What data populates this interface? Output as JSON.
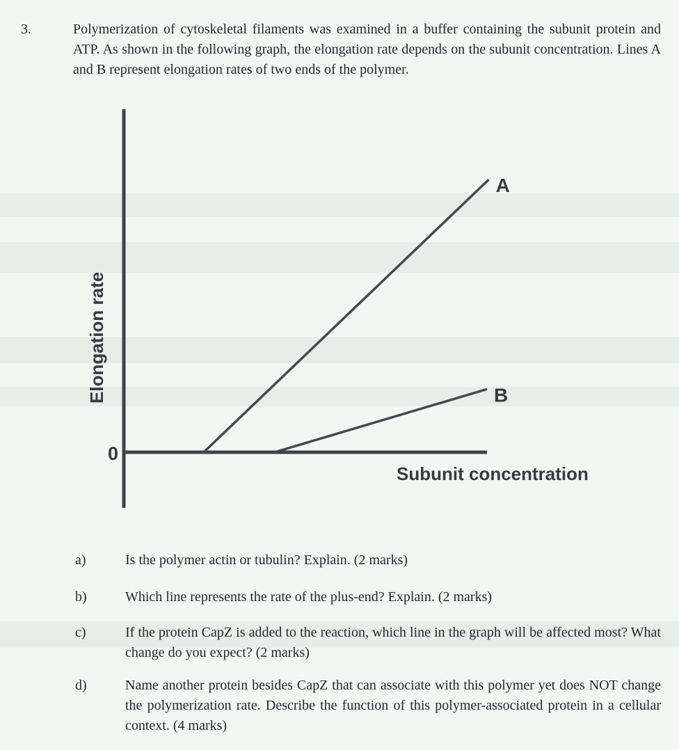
{
  "question": {
    "number": "3.",
    "text": "Polymerization of cytoskeletal filaments was examined in a buffer containing the subunit protein and ATP. As shown in the following graph, the elongation rate depends on the subunit concentration. Lines A and B represent elongation rates of two ends of the polymer."
  },
  "chart_data": {
    "type": "line",
    "title": "",
    "xlabel": "Subunit concentration",
    "ylabel": "Elongation rate",
    "origin_label": "0",
    "x_axis": {
      "ticks": [],
      "note": "unlabeled arbitrary units, 0 at origin"
    },
    "y_axis": {
      "ticks": [],
      "note": "unlabeled arbitrary units, 0 at x-axis level"
    },
    "grid": false,
    "legend": "inline end-of-line labels",
    "series": [
      {
        "name": "A",
        "description": "steep straight line; intercepts x-axis at lower critical concentration (~0.22 of axis span) rising to ~0.80 of plot height at right edge",
        "points_frac": [
          [
            0.22,
            0.0
          ],
          [
            1.005,
            0.8
          ]
        ]
      },
      {
        "name": "B",
        "description": "shallow straight line; intercepts x-axis at higher critical concentration (~0.42 of axis span) rising to ~0.185 of plot height",
        "points_frac": [
          [
            0.415,
            0.0
          ],
          [
            1.0,
            0.185
          ]
        ]
      }
    ]
  },
  "subquestions": [
    {
      "label": "a)",
      "text": "Is the polymer actin or tubulin? Explain. (2 marks)"
    },
    {
      "label": "b)",
      "text": "Which line represents the rate of the plus-end? Explain. (2 marks)"
    },
    {
      "label": "c)",
      "text": "If the protein CapZ is added to the reaction, which line in the graph will be affected most? What change do you expect? (2 marks)"
    },
    {
      "label": "d)",
      "text": "Name another protein besides CapZ that can associate with this polymer yet does NOT change the polymerization rate. Describe the function of this polymer-associated protein in a cellular context. (4 marks)"
    }
  ],
  "colors": {
    "paper": "#f2f7f4",
    "ink": "#24282c",
    "axis": "#3e4346",
    "series_line": "#45494d",
    "graph_label": "#363b3f"
  }
}
